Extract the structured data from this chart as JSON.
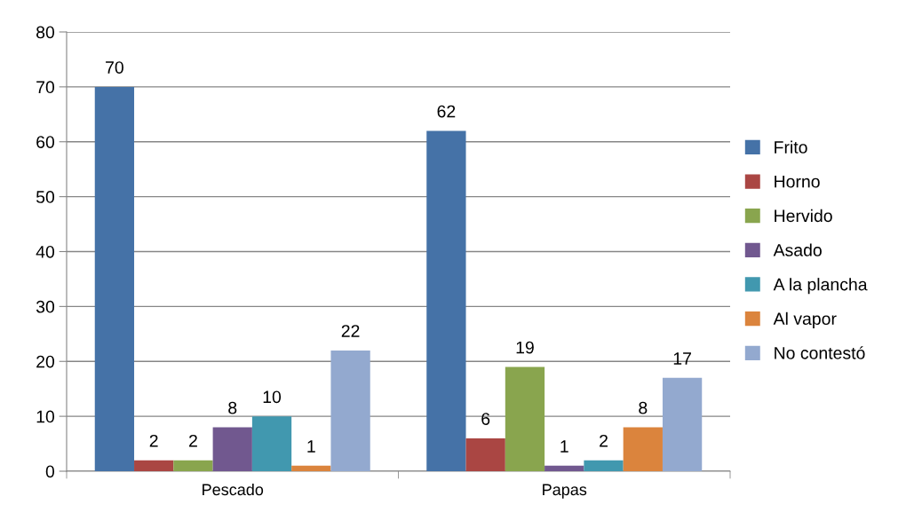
{
  "chart_data": {
    "type": "bar",
    "categories": [
      "Pescado",
      "Papas"
    ],
    "series": [
      {
        "name": "Frito",
        "color": "#4572a7",
        "values": [
          70,
          62
        ]
      },
      {
        "name": "Horno",
        "color": "#aa4643",
        "values": [
          2,
          6
        ]
      },
      {
        "name": "Hervido",
        "color": "#89a54e",
        "values": [
          2,
          19
        ]
      },
      {
        "name": "Asado",
        "color": "#71588f",
        "values": [
          8,
          1
        ]
      },
      {
        "name": "A la plancha",
        "color": "#4198af",
        "values": [
          10,
          2
        ]
      },
      {
        "name": "Al vapor",
        "color": "#db843d",
        "values": [
          1,
          8
        ]
      },
      {
        "name": "No contestó",
        "color": "#93a9cf",
        "values": [
          22,
          17
        ]
      }
    ],
    "ylim": [
      0,
      80
    ],
    "yticks": [
      0,
      10,
      20,
      30,
      40,
      50,
      60,
      70,
      80
    ],
    "grid": "y",
    "legend": "right",
    "data_labels": true
  }
}
